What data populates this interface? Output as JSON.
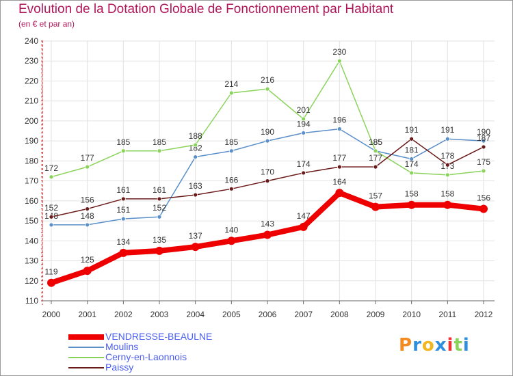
{
  "title": "Evolution de la Dotation Globale de Fonctionnement par Habitant",
  "subtitle": "(en € et par an)",
  "logo": {
    "text": "Proxiti",
    "letters": [
      "P",
      "r",
      "o",
      "x",
      "i",
      "t",
      "i"
    ]
  },
  "colors": {
    "title": "#b0175a",
    "vendresse": "#ee0000",
    "moulins": "#5a8fc8",
    "cerny": "#8ad35a",
    "paissy": "#6b1a1a",
    "legend_text": "#4a5ef0",
    "logo_colors": [
      "#f28a1f",
      "#2d8fe0",
      "#f2b61f",
      "#2d8fe0",
      "#ee3333",
      "#8ad35a",
      "#2d8fe0"
    ]
  },
  "chart_data": {
    "type": "line",
    "title": "Evolution de la Dotation Globale de Fonctionnement par Habitant",
    "ylabel": "(en € et par an)",
    "xlabel": "",
    "categories": [
      "2000",
      "2001",
      "2002",
      "2003",
      "2004",
      "2005",
      "2006",
      "2007",
      "2008",
      "2009",
      "2010",
      "2011",
      "2012"
    ],
    "ylim": [
      110,
      240
    ],
    "yticks": [
      110,
      120,
      130,
      140,
      150,
      160,
      170,
      180,
      190,
      200,
      210,
      220,
      230,
      240
    ],
    "grid": true,
    "legend_position": "bottom-left",
    "series": [
      {
        "key": "moulins",
        "name": "Moulins",
        "values": [
          148,
          148,
          151,
          152,
          182,
          185,
          190,
          194,
          196,
          185,
          181,
          191,
          190
        ]
      },
      {
        "key": "cerny",
        "name": "Cerny-en-Laonnois",
        "values": [
          172,
          177,
          185,
          185,
          188,
          214,
          216,
          201,
          230,
          185,
          174,
          173,
          175
        ]
      },
      {
        "key": "paissy",
        "name": "Paissy",
        "values": [
          152,
          156,
          161,
          161,
          163,
          166,
          170,
          174,
          177,
          177,
          191,
          178,
          187
        ]
      },
      {
        "key": "vendresse",
        "name": "VENDRESSE-BEAULNE",
        "values": [
          119,
          125,
          134,
          135,
          137,
          140,
          143,
          147,
          164,
          157,
          158,
          158,
          156
        ]
      }
    ],
    "legend_order": [
      "vendresse",
      "moulins",
      "cerny",
      "paissy"
    ]
  }
}
